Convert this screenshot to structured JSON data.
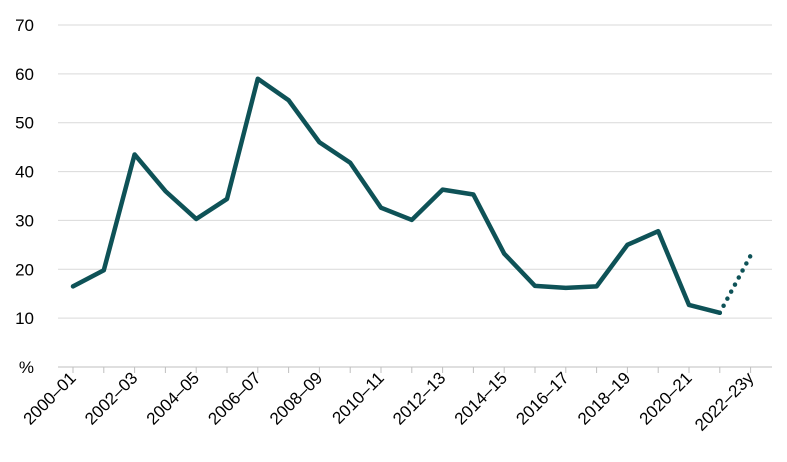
{
  "chart_data": {
    "type": "line",
    "ylabel": "%",
    "ylim": [
      0,
      70
    ],
    "yticks": [
      10,
      20,
      30,
      40,
      50,
      60,
      70
    ],
    "grid": true,
    "x_labels": [
      "2000–01",
      "2002–03",
      "2004–05",
      "2006–07",
      "2008–09",
      "2010–11",
      "2012–13",
      "2014–15",
      "2016–17",
      "2018–19",
      "2020–21",
      "2022–23y"
    ],
    "x": [
      "2000–01",
      "2001–02",
      "2002–03",
      "2003–04",
      "2004–05",
      "2005–06",
      "2006–07",
      "2007–08",
      "2008–09",
      "2009–10",
      "2010–11",
      "2011–12",
      "2012–13",
      "2013–14",
      "2014–15",
      "2015–16",
      "2016–17",
      "2017–18",
      "2018–19",
      "2019–20",
      "2020–21",
      "2021–22",
      "2022–23y"
    ],
    "series": [
      {
        "color": "#0e5257",
        "values": [
          16.5,
          19.8,
          43.5,
          36,
          30.3,
          34.4,
          59,
          54.6,
          46,
          41.8,
          32.6,
          30.1,
          36.3,
          35.3,
          23.2,
          16.6,
          16.2,
          16.5,
          25,
          27.8,
          12.7,
          11.1,
          null
        ],
        "projection_values": [
          null,
          null,
          null,
          null,
          null,
          null,
          null,
          null,
          null,
          null,
          null,
          null,
          null,
          null,
          null,
          null,
          null,
          null,
          null,
          null,
          null,
          11.1,
          22.8
        ]
      }
    ]
  }
}
